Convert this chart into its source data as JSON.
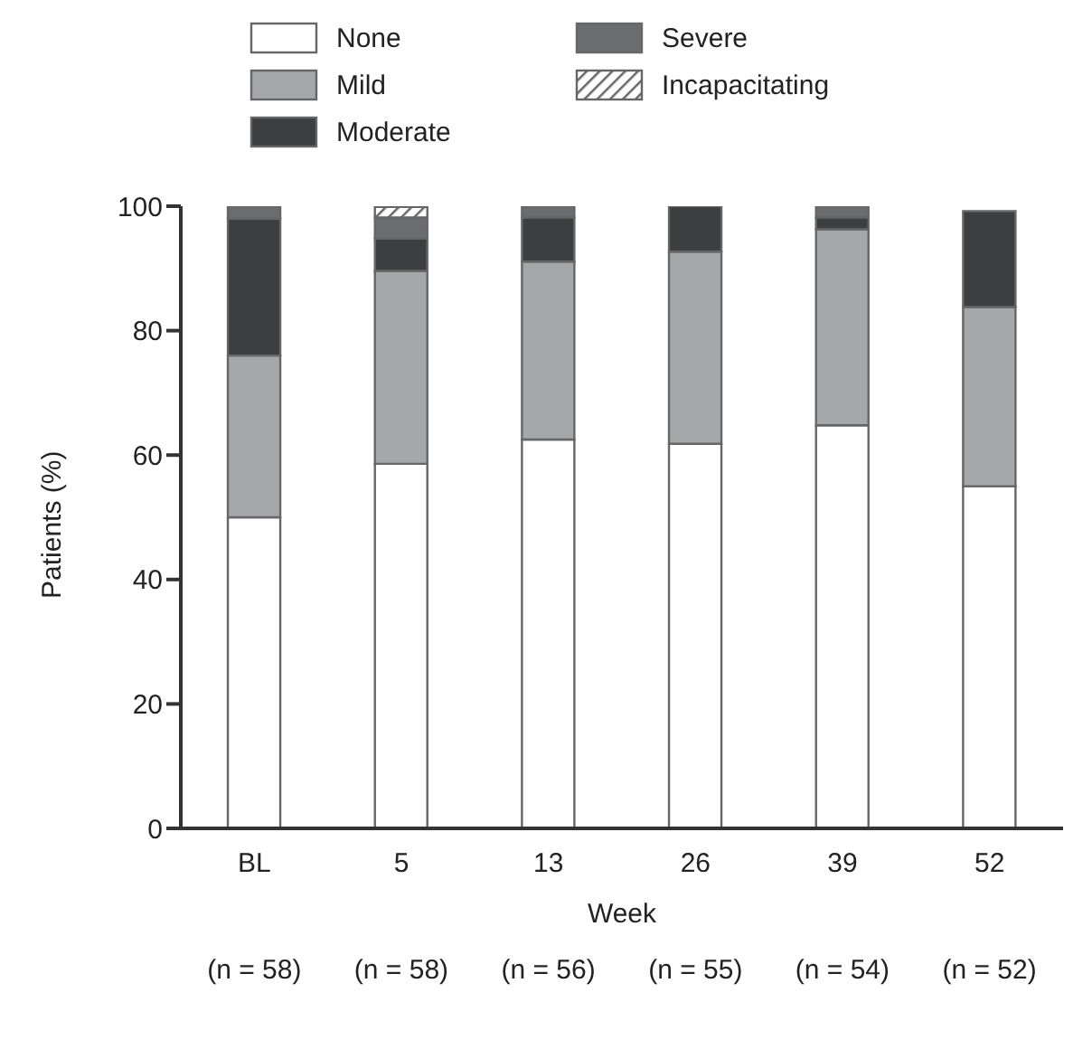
{
  "chart_data": {
    "type": "bar",
    "stacked": true,
    "ylabel": "Patients (%)",
    "xlabel": "Week",
    "categories": [
      "BL",
      "5",
      "13",
      "26",
      "39",
      "52"
    ],
    "series": [
      {
        "name": "None",
        "color": "#ffffff",
        "values": [
          50,
          58.6,
          62.5,
          61.8,
          64.8,
          55
        ]
      },
      {
        "name": "Mild",
        "color": "#a6a7aa",
        "values": [
          26,
          31.0,
          28.6,
          30.9,
          31.5,
          28.8
        ]
      },
      {
        "name": "Moderate",
        "color": "#3d3e40",
        "values": [
          22,
          5.2,
          7.1,
          7.3,
          1.9,
          15.4
        ]
      },
      {
        "name": "Severe",
        "color": "#6b6c6f",
        "values": [
          2,
          3.4,
          1.8,
          null,
          1.9,
          null
        ]
      },
      {
        "name": "Incapacitating",
        "color": "#666666",
        "values": [
          null,
          1.7,
          null,
          null,
          null,
          null
        ]
      }
    ],
    "ylim": [
      0,
      100
    ],
    "yticks": [
      0,
      20,
      40,
      60,
      80,
      100
    ],
    "grid": false,
    "legend": "top",
    "annotations": [
      "(n = 58)",
      "(n = 58)",
      "(n = 56)",
      "(n = 55)",
      "(n = 54)",
      "(n = 52)"
    ]
  }
}
